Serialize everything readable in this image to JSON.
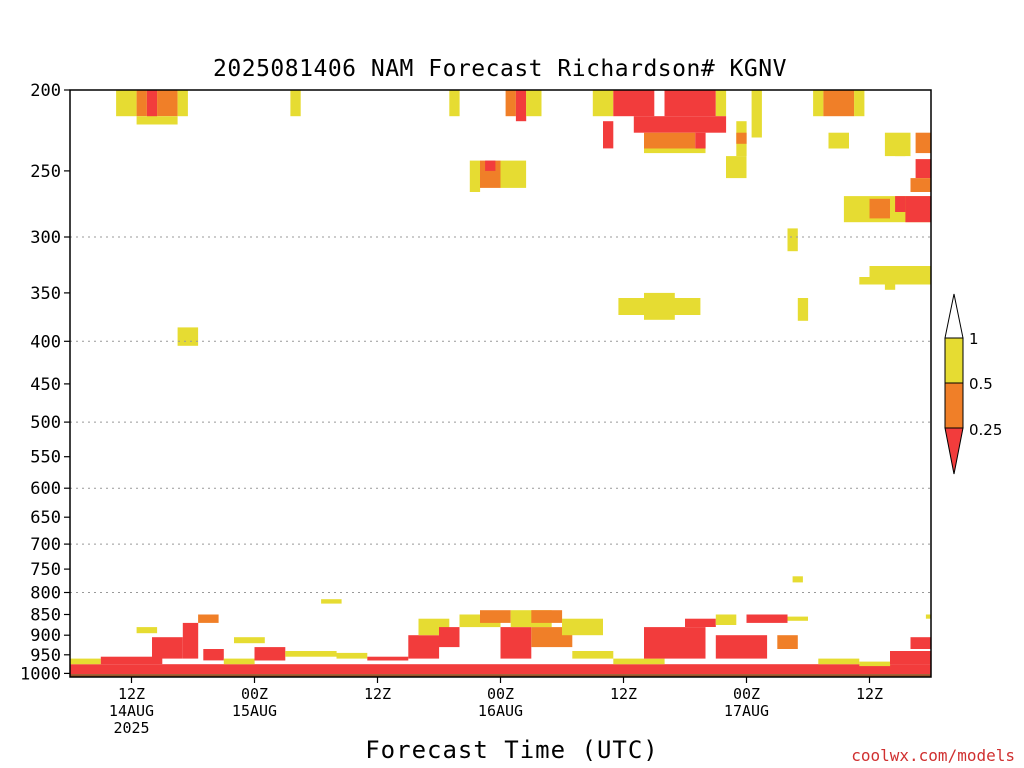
{
  "chart_data": {
    "type": "heatmap",
    "title": "2025081406 NAM Forecast Richardson# KGNV",
    "xlabel": "Forecast Time (UTC)",
    "ylabel": "",
    "credit": "coolwx.com/models",
    "y_scale": "log",
    "ylim": [
      1010,
      200
    ],
    "xlim_hours_from_start": [
      0,
      84
    ],
    "y_ticks": [
      "200",
      "250",
      "300",
      "350",
      "400",
      "450",
      "500",
      "550",
      "600",
      "650",
      "700",
      "750",
      "800",
      "850",
      "900",
      "950",
      "1000"
    ],
    "grid_levels": [
      300,
      400,
      500,
      600,
      700,
      800
    ],
    "x_ticks": [
      {
        "hour": 6,
        "lines": [
          "12Z",
          "14AUG",
          "2025"
        ]
      },
      {
        "hour": 18,
        "lines": [
          "00Z",
          "15AUG"
        ]
      },
      {
        "hour": 30,
        "lines": [
          "12Z"
        ]
      },
      {
        "hour": 42,
        "lines": [
          "00Z",
          "16AUG"
        ]
      },
      {
        "hour": 54,
        "lines": [
          "12Z"
        ]
      },
      {
        "hour": 66,
        "lines": [
          "00Z",
          "17AUG"
        ]
      },
      {
        "hour": 78,
        "lines": [
          "12Z"
        ]
      }
    ],
    "colors": {
      "below_0_25": "#f23c3c",
      "0_25_to_0_5": "#f07f28",
      "0_5_to_1": "#e6dc32",
      "above_1": "#ffffff",
      "ground": "#9a5528"
    },
    "legend": {
      "position": "right",
      "labels": [
        "1",
        "0.5",
        "0.25"
      ]
    },
    "regions": [
      {
        "t": [
          4.5,
          6.5
        ],
        "p": [
          200,
          215
        ],
        "c": "y"
      },
      {
        "t": [
          6.5,
          7.5
        ],
        "p": [
          200,
          215
        ],
        "c": "o"
      },
      {
        "t": [
          7.5,
          8.5
        ],
        "p": [
          200,
          218
        ],
        "c": "r"
      },
      {
        "t": [
          8.5,
          10.5
        ],
        "p": [
          200,
          215
        ],
        "c": "o"
      },
      {
        "t": [
          10.5,
          11.5
        ],
        "p": [
          200,
          215
        ],
        "c": "y"
      },
      {
        "t": [
          6.5,
          10.5
        ],
        "p": [
          215,
          220
        ],
        "c": "y"
      },
      {
        "t": [
          21.5,
          22.5
        ],
        "p": [
          200,
          215
        ],
        "c": "y"
      },
      {
        "t": [
          37,
          38
        ],
        "p": [
          200,
          215
        ],
        "c": "y"
      },
      {
        "t": [
          42.5,
          43.5
        ],
        "p": [
          200,
          215
        ],
        "c": "o"
      },
      {
        "t": [
          43.5,
          44.5
        ],
        "p": [
          200,
          218
        ],
        "c": "r"
      },
      {
        "t": [
          44.5,
          46
        ],
        "p": [
          200,
          215
        ],
        "c": "y"
      },
      {
        "t": [
          51,
          53
        ],
        "p": [
          200,
          215
        ],
        "c": "y"
      },
      {
        "t": [
          53,
          57
        ],
        "p": [
          200,
          215
        ],
        "c": "r"
      },
      {
        "t": [
          58,
          63
        ],
        "p": [
          200,
          215
        ],
        "c": "r"
      },
      {
        "t": [
          63,
          64
        ],
        "p": [
          200,
          215
        ],
        "c": "y"
      },
      {
        "t": [
          66.5,
          67.5
        ],
        "p": [
          200,
          228
        ],
        "c": "y"
      },
      {
        "t": [
          72.5,
          73.5
        ],
        "p": [
          200,
          215
        ],
        "c": "y"
      },
      {
        "t": [
          73.5,
          76.5
        ],
        "p": [
          200,
          215
        ],
        "c": "o"
      },
      {
        "t": [
          76.5,
          77.5
        ],
        "p": [
          200,
          215
        ],
        "c": "y"
      },
      {
        "t": [
          55,
          64
        ],
        "p": [
          215,
          225
        ],
        "c": "r"
      },
      {
        "t": [
          56,
          61
        ],
        "p": [
          225,
          235
        ],
        "c": "o"
      },
      {
        "t": [
          56,
          62
        ],
        "p": [
          235,
          238
        ],
        "c": "y"
      },
      {
        "t": [
          52,
          53
        ],
        "p": [
          218,
          235
        ],
        "c": "r"
      },
      {
        "t": [
          61,
          62
        ],
        "p": [
          225,
          235
        ],
        "c": "r"
      },
      {
        "t": [
          65,
          66
        ],
        "p": [
          218,
          240
        ],
        "c": "y"
      },
      {
        "t": [
          65,
          66
        ],
        "p": [
          225,
          232
        ],
        "c": "o"
      },
      {
        "t": [
          64,
          66
        ],
        "p": [
          240,
          255
        ],
        "c": "y"
      },
      {
        "t": [
          74,
          76
        ],
        "p": [
          225,
          235
        ],
        "c": "y"
      },
      {
        "t": [
          79.5,
          82
        ],
        "p": [
          225,
          240
        ],
        "c": "y"
      },
      {
        "t": [
          80.5,
          81.5
        ],
        "p": [
          235,
          240
        ],
        "c": "y"
      },
      {
        "t": [
          82.5,
          84
        ],
        "p": [
          225,
          238
        ],
        "c": "o"
      },
      {
        "t": [
          39,
          40
        ],
        "p": [
          243,
          265
        ],
        "c": "y"
      },
      {
        "t": [
          40,
          42
        ],
        "p": [
          243,
          262
        ],
        "c": "o"
      },
      {
        "t": [
          40.5,
          41.5
        ],
        "p": [
          243,
          250
        ],
        "c": "r"
      },
      {
        "t": [
          42,
          44.5
        ],
        "p": [
          243,
          262
        ],
        "c": "y"
      },
      {
        "t": [
          82.5,
          84
        ],
        "p": [
          242,
          255
        ],
        "c": "r"
      },
      {
        "t": [
          82,
          84
        ],
        "p": [
          255,
          265
        ],
        "c": "o"
      },
      {
        "t": [
          75.5,
          84
        ],
        "p": [
          268,
          288
        ],
        "c": "y"
      },
      {
        "t": [
          78,
          80
        ],
        "p": [
          270,
          285
        ],
        "c": "o"
      },
      {
        "t": [
          80.5,
          81.5
        ],
        "p": [
          268,
          280
        ],
        "c": "r"
      },
      {
        "t": [
          81.5,
          84
        ],
        "p": [
          268,
          288
        ],
        "c": "r"
      },
      {
        "t": [
          70,
          71
        ],
        "p": [
          293,
          312
        ],
        "c": "y"
      },
      {
        "t": [
          78,
          84
        ],
        "p": [
          325,
          342
        ],
        "c": "y"
      },
      {
        "t": [
          77,
          78
        ],
        "p": [
          335,
          342
        ],
        "c": "y"
      },
      {
        "t": [
          79.5,
          80.5
        ],
        "p": [
          342,
          347
        ],
        "c": "y"
      },
      {
        "t": [
          53.5,
          61.5
        ],
        "p": [
          355,
          372
        ],
        "c": "y"
      },
      {
        "t": [
          56,
          59
        ],
        "p": [
          350,
          377
        ],
        "c": "y"
      },
      {
        "t": [
          71,
          72
        ],
        "p": [
          355,
          378
        ],
        "c": "y"
      },
      {
        "t": [
          10.5,
          12.5
        ],
        "p": [
          385,
          405
        ],
        "c": "y"
      },
      {
        "t": [
          70.5,
          71.5
        ],
        "p": [
          765,
          778
        ],
        "c": "y"
      },
      {
        "t": [
          24.5,
          26.5
        ],
        "p": [
          815,
          825
        ],
        "c": "y"
      },
      {
        "t": [
          0,
          84
        ],
        "p": [
          975,
          1002
        ],
        "c": "r"
      },
      {
        "t": [
          0,
          3
        ],
        "p": [
          960,
          975
        ],
        "c": "y"
      },
      {
        "t": [
          3,
          9
        ],
        "p": [
          955,
          975
        ],
        "c": "r"
      },
      {
        "t": [
          8,
          11
        ],
        "p": [
          905,
          960
        ],
        "c": "r"
      },
      {
        "t": [
          11,
          12.5
        ],
        "p": [
          870,
          960
        ],
        "c": "r"
      },
      {
        "t": [
          12.5,
          14.5
        ],
        "p": [
          850,
          870
        ],
        "c": "o"
      },
      {
        "t": [
          6.5,
          8.5
        ],
        "p": [
          880,
          895
        ],
        "c": "y"
      },
      {
        "t": [
          13,
          15
        ],
        "p": [
          935,
          965
        ],
        "c": "r"
      },
      {
        "t": [
          15,
          18
        ],
        "p": [
          960,
          975
        ],
        "c": "y"
      },
      {
        "t": [
          16,
          19
        ],
        "p": [
          905,
          920
        ],
        "c": "y"
      },
      {
        "t": [
          18,
          21
        ],
        "p": [
          930,
          965
        ],
        "c": "r"
      },
      {
        "t": [
          21,
          26
        ],
        "p": [
          940,
          955
        ],
        "c": "y"
      },
      {
        "t": [
          26,
          29
        ],
        "p": [
          945,
          960
        ],
        "c": "y"
      },
      {
        "t": [
          29,
          33
        ],
        "p": [
          955,
          965
        ],
        "c": "r"
      },
      {
        "t": [
          33,
          36
        ],
        "p": [
          900,
          960
        ],
        "c": "r"
      },
      {
        "t": [
          34,
          37
        ],
        "p": [
          860,
          900
        ],
        "c": "y"
      },
      {
        "t": [
          36,
          38
        ],
        "p": [
          880,
          930
        ],
        "c": "r"
      },
      {
        "t": [
          38,
          42
        ],
        "p": [
          850,
          880
        ],
        "c": "y"
      },
      {
        "t": [
          40,
          43
        ],
        "p": [
          840,
          870
        ],
        "c": "o"
      },
      {
        "t": [
          42,
          45
        ],
        "p": [
          880,
          960
        ],
        "c": "r"
      },
      {
        "t": [
          43,
          47
        ],
        "p": [
          840,
          880
        ],
        "c": "y"
      },
      {
        "t": [
          45,
          48
        ],
        "p": [
          840,
          870
        ],
        "c": "o"
      },
      {
        "t": [
          45,
          49
        ],
        "p": [
          880,
          930
        ],
        "c": "o"
      },
      {
        "t": [
          48,
          52
        ],
        "p": [
          860,
          900
        ],
        "c": "y"
      },
      {
        "t": [
          49,
          53
        ],
        "p": [
          940,
          960
        ],
        "c": "y"
      },
      {
        "t": [
          53,
          58
        ],
        "p": [
          960,
          975
        ],
        "c": "y"
      },
      {
        "t": [
          56,
          62
        ],
        "p": [
          880,
          960
        ],
        "c": "r"
      },
      {
        "t": [
          60,
          63
        ],
        "p": [
          860,
          880
        ],
        "c": "r"
      },
      {
        "t": [
          63,
          65
        ],
        "p": [
          850,
          875
        ],
        "c": "y"
      },
      {
        "t": [
          63,
          68
        ],
        "p": [
          900,
          960
        ],
        "c": "r"
      },
      {
        "t": [
          66,
          70
        ],
        "p": [
          850,
          870
        ],
        "c": "r"
      },
      {
        "t": [
          69,
          71
        ],
        "p": [
          900,
          935
        ],
        "c": "o"
      },
      {
        "t": [
          70,
          72
        ],
        "p": [
          855,
          865
        ],
        "c": "y"
      },
      {
        "t": [
          73,
          77
        ],
        "p": [
          960,
          975
        ],
        "c": "y"
      },
      {
        "t": [
          77,
          80
        ],
        "p": [
          968,
          980
        ],
        "c": "y"
      },
      {
        "t": [
          80,
          84
        ],
        "p": [
          940,
          975
        ],
        "c": "r"
      },
      {
        "t": [
          82,
          84
        ],
        "p": [
          905,
          935
        ],
        "c": "r"
      },
      {
        "t": [
          83.5,
          84
        ],
        "p": [
          850,
          860
        ],
        "c": "y"
      }
    ]
  }
}
